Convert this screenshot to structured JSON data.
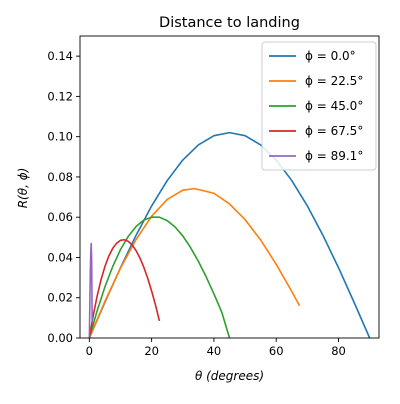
{
  "chart_data": {
    "type": "line",
    "title": "Distance to landing",
    "xlabel": "θ (degrees)",
    "ylabel": "R(θ, ϕ)",
    "xlim": [
      -3,
      93
    ],
    "ylim": [
      0,
      0.15
    ],
    "xticks": [
      0,
      20,
      40,
      60,
      80
    ],
    "xtick_labels": [
      "0",
      "20",
      "40",
      "60",
      "80"
    ],
    "yticks": [
      0.0,
      0.02,
      0.04,
      0.06,
      0.08,
      0.1,
      0.12,
      0.14
    ],
    "ytick_labels": [
      "0.00",
      "0.02",
      "0.04",
      "0.06",
      "0.08",
      "0.10",
      "0.12",
      "0.14"
    ],
    "grid": false,
    "legend_position": "top-right",
    "series": [
      {
        "name": "ϕ = 0.0°",
        "color": "#1f77b4",
        "x": [
          0,
          5,
          10,
          15,
          20,
          25,
          30,
          35,
          40,
          45,
          50,
          55,
          60,
          65,
          70,
          75,
          80,
          85,
          90
        ],
        "y": [
          0,
          0.0177,
          0.0349,
          0.051,
          0.0656,
          0.0782,
          0.0884,
          0.0959,
          0.1005,
          0.102,
          0.1005,
          0.0959,
          0.0884,
          0.0782,
          0.0656,
          0.051,
          0.0349,
          0.0177,
          0
        ]
      },
      {
        "name": "ϕ = 22.5°",
        "color": "#ff7f0e",
        "x": [
          0,
          5,
          10,
          15,
          20,
          25,
          30,
          33.75,
          40,
          45,
          50,
          55,
          60,
          65,
          67.5
        ],
        "y": [
          0,
          0.0182,
          0.0347,
          0.0489,
          0.0605,
          0.0688,
          0.0734,
          0.0742,
          0.0719,
          0.0666,
          0.0588,
          0.0487,
          0.0366,
          0.0231,
          0.016
        ]
      },
      {
        "name": "ϕ = 45.0°",
        "color": "#2ca02c",
        "x": [
          0,
          2.5,
          5,
          7.5,
          10,
          12.5,
          15,
          17.5,
          20,
          22.5,
          25,
          27.5,
          30,
          32.5,
          35,
          37.5,
          40,
          42.5,
          45
        ],
        "y": [
          0,
          0.0135,
          0.0254,
          0.0355,
          0.0439,
          0.0505,
          0.0554,
          0.0586,
          0.06,
          0.06,
          0.0583,
          0.0552,
          0.0507,
          0.0449,
          0.0381,
          0.0304,
          0.0219,
          0.0129,
          0
        ]
      },
      {
        "name": "ϕ = 67.5°",
        "color": "#d62728",
        "x": [
          0,
          1.25,
          2.5,
          3.75,
          5,
          6.25,
          7.5,
          8.75,
          10,
          11.25,
          12.5,
          13.75,
          15,
          16.25,
          17.5,
          18.75,
          20,
          21.25,
          22.5
        ],
        "y": [
          0,
          0.0112,
          0.0208,
          0.0289,
          0.0355,
          0.0407,
          0.0445,
          0.0471,
          0.0485,
          0.0488,
          0.048,
          0.0462,
          0.0434,
          0.0397,
          0.0351,
          0.0296,
          0.0233,
          0.0163,
          0.0085
        ]
      },
      {
        "name": "ϕ = 89.1°",
        "color": "#9467bd",
        "x": [
          0,
          0.3,
          0.45,
          0.6,
          0.75,
          0.9
        ],
        "y": [
          0,
          0.032,
          0.042,
          0.047,
          0.038,
          0.008
        ]
      }
    ]
  }
}
